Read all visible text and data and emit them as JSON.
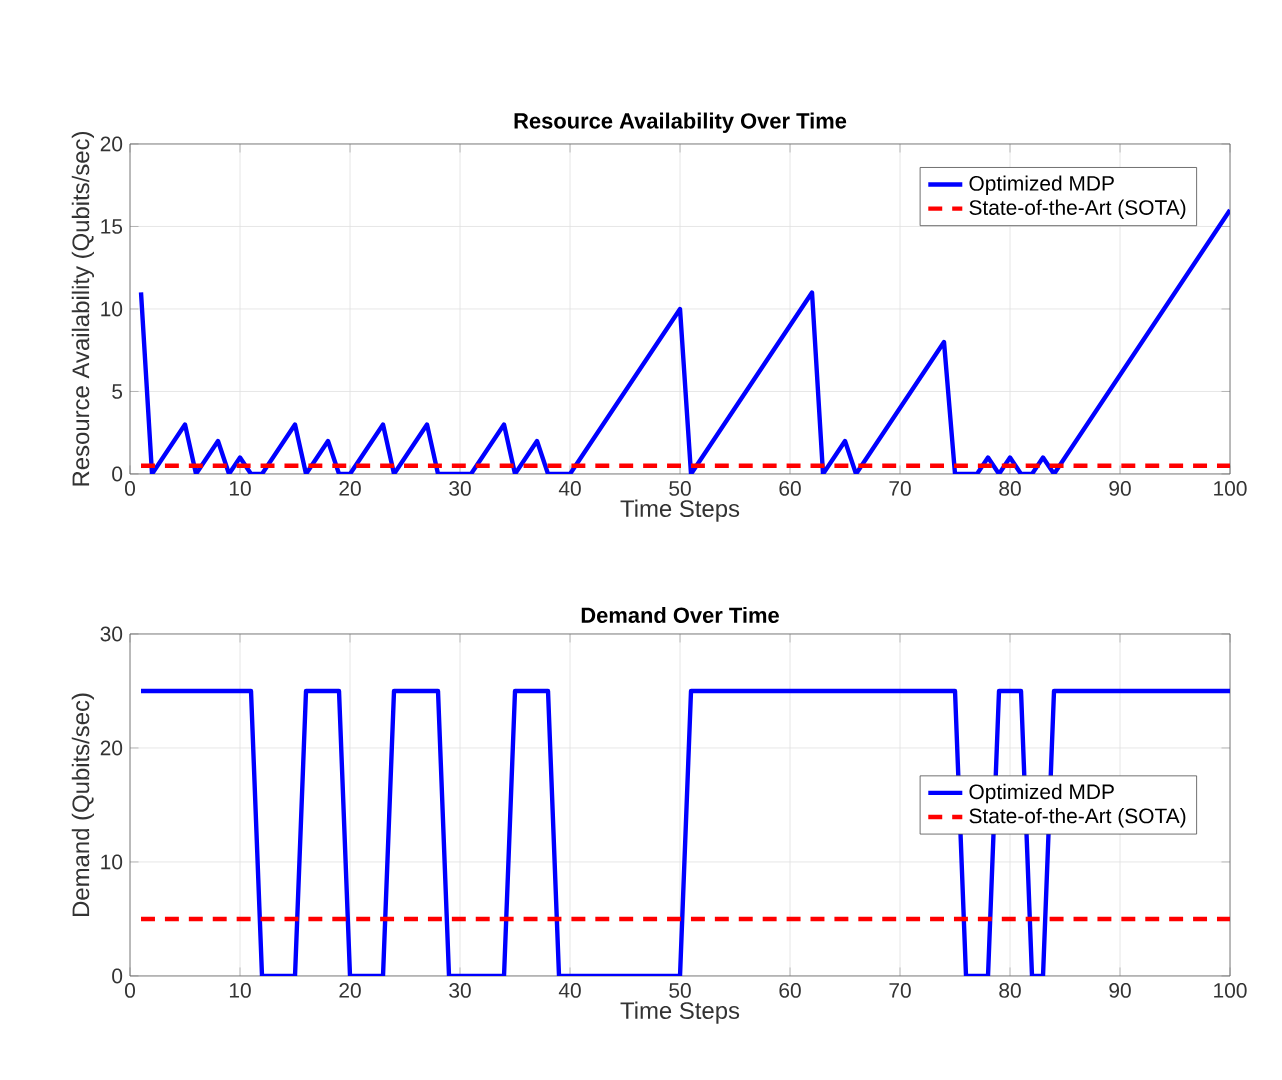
{
  "chart_data": [
    {
      "type": "line",
      "title": "Resource Availability Over Time",
      "xlabel": "Time Steps",
      "ylabel": "Resource Availability (Qubits/sec)",
      "xlim": [
        0,
        100
      ],
      "xticks": [
        0,
        10,
        20,
        30,
        40,
        50,
        60,
        70,
        80,
        90,
        100
      ],
      "ylim": [
        0,
        20
      ],
      "yticks": [
        0,
        5,
        10,
        15,
        20
      ],
      "grid": true,
      "legend": "top right",
      "series": [
        {
          "name": "Optimized MDP",
          "color": "#0000ff",
          "line_style": "solid",
          "x": [
            1,
            2,
            5,
            6,
            8,
            9,
            10,
            11,
            12,
            15,
            16,
            18,
            19,
            20,
            23,
            24,
            27,
            28,
            31,
            34,
            35,
            37,
            38,
            40,
            50,
            51,
            62,
            63,
            65,
            66,
            74,
            75,
            77,
            78,
            79,
            80,
            81,
            82,
            83,
            84,
            100
          ],
          "values": [
            11,
            0,
            3,
            0,
            2,
            0,
            1,
            0,
            0,
            3,
            0,
            2,
            0,
            0,
            3,
            0,
            3,
            0,
            0,
            3,
            0,
            2,
            0,
            0,
            10,
            0,
            11,
            0,
            2,
            0,
            8,
            0,
            0,
            1,
            0,
            1,
            0,
            0,
            1,
            0,
            16
          ]
        },
        {
          "name": "State-of-the-Art (SOTA)",
          "color": "#ff0000",
          "line_style": "dashed",
          "x": [
            1,
            100
          ],
          "values": [
            0.5,
            0.5
          ]
        }
      ]
    },
    {
      "type": "line",
      "title": "Demand Over Time",
      "xlabel": "Time Steps",
      "ylabel": "Demand (Qubits/sec)",
      "xlim": [
        0,
        100
      ],
      "xticks": [
        0,
        10,
        20,
        30,
        40,
        50,
        60,
        70,
        80,
        90,
        100
      ],
      "ylim": [
        0,
        30
      ],
      "yticks": [
        0,
        10,
        20,
        30
      ],
      "grid": true,
      "legend": "right",
      "series": [
        {
          "name": "Optimized MDP",
          "color": "#0000ff",
          "line_style": "solid",
          "x": [
            1,
            11,
            12,
            15,
            16,
            19,
            20,
            23,
            24,
            28,
            29,
            34,
            35,
            38,
            39,
            50,
            51,
            75,
            76,
            78,
            79,
            81,
            82,
            83,
            84,
            100
          ],
          "values": [
            25,
            25,
            0,
            0,
            25,
            25,
            0,
            0,
            25,
            25,
            0,
            0,
            25,
            25,
            0,
            0,
            25,
            25,
            0,
            0,
            25,
            25,
            0,
            0,
            25,
            25
          ]
        },
        {
          "name": "State-of-the-Art (SOTA)",
          "color": "#ff0000",
          "line_style": "dashed",
          "x": [
            1,
            100
          ],
          "values": [
            5,
            5
          ]
        }
      ]
    }
  ]
}
